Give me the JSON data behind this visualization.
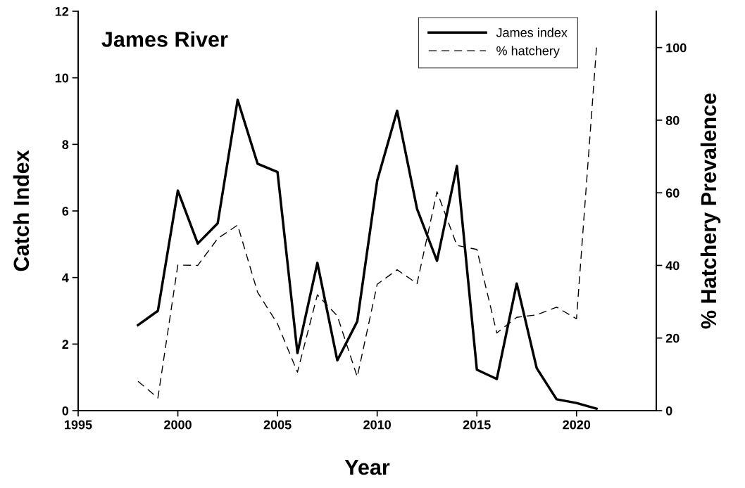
{
  "chart_data": {
    "type": "line",
    "x": [
      1998,
      1999,
      2000,
      2001,
      2002,
      2003,
      2004,
      2005,
      2006,
      2007,
      2008,
      2009,
      2010,
      2011,
      2012,
      2013,
      2014,
      2015,
      2016,
      2017,
      2018,
      2019,
      2020,
      2021
    ],
    "series": [
      {
        "name": "James index",
        "color": "#000000",
        "line_style": "solid",
        "values": [
          2.57,
          3.0,
          6.61,
          5.02,
          5.63,
          9.34,
          7.42,
          7.17,
          1.73,
          4.44,
          1.51,
          2.68,
          6.91,
          9.01,
          6.06,
          4.5,
          7.35,
          1.23,
          0.95,
          3.82,
          1.28,
          0.34,
          0.23,
          0.06
        ]
      },
      {
        "name": "% hatchery",
        "color": "#000000",
        "line_style": "dashed",
        "axis": "y2",
        "values": [
          8.1,
          3.5,
          40.1,
          40.0,
          47.4,
          51.1,
          32.6,
          23.9,
          10.6,
          31.9,
          26.1,
          9.3,
          34.8,
          38.8,
          35.0,
          60.3,
          45.5,
          44.4,
          21.4,
          25.7,
          26.4,
          28.5,
          25.3,
          100
        ]
      }
    ],
    "xlabel": "Year",
    "ylabel": "Catch Index",
    "y2label": "% Hatchery Prevalence",
    "annotations": [
      "James River"
    ],
    "xlim": [
      1995,
      2024
    ],
    "xticks": [
      1995,
      2000,
      2005,
      2010,
      2015,
      2020
    ],
    "ylim": [
      0,
      12
    ],
    "yticks": [
      0,
      2,
      4,
      6,
      8,
      10,
      12
    ],
    "y2lim": [
      0,
      110
    ],
    "y2ticks": [
      0,
      20,
      40,
      60,
      80,
      100
    ],
    "legend": "top right",
    "grid": false,
    "marker": "none"
  }
}
